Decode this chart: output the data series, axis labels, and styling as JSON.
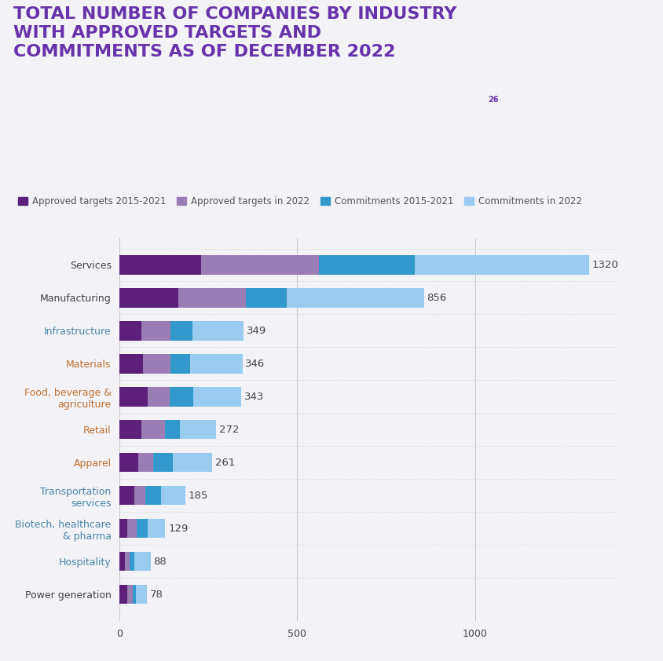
{
  "title_line1": "TOTAL NUMBER OF COMPANIES BY INDUSTRY",
  "title_line2": "WITH APPROVED TARGETS AND",
  "title_line3": "COMMITMENTS AS OF DECEMBER 2022",
  "title_superscript": "26",
  "title_color": "#6633aa",
  "background_color": "#f2f2f7",
  "categories": [
    "Services",
    "Manufacturing",
    "Infrastructure",
    "Materials",
    "Food, beverage &\nagriculture",
    "Retail",
    "Apparel",
    "Transportation\nservices",
    "Biotech, healthcare\n& pharma",
    "Hospitality",
    "Power generation"
  ],
  "totals": [
    1320,
    856,
    349,
    346,
    343,
    272,
    261,
    185,
    129,
    88,
    78
  ],
  "segments": {
    "approved_2015_2021": [
      230,
      165,
      62,
      65,
      80,
      62,
      52,
      42,
      22,
      16,
      22
    ],
    "approved_2022": [
      330,
      190,
      82,
      78,
      62,
      65,
      42,
      30,
      26,
      12,
      16
    ],
    "commit_2015_2021": [
      270,
      115,
      62,
      55,
      65,
      42,
      57,
      45,
      31,
      14,
      8
    ],
    "commit_2022": [
      490,
      386,
      143,
      148,
      136,
      103,
      110,
      68,
      50,
      46,
      32
    ]
  },
  "colors": {
    "approved_2015_2021": "#5c1f7a",
    "approved_2022": "#9b7db5",
    "commit_2015_2021": "#3399cc",
    "commit_2022": "#99ccee"
  },
  "legend_labels": [
    "Approved targets 2015-2021",
    "Approved targets in 2022",
    "Commitments 2015-2021",
    "Commitments in 2022"
  ],
  "legend_color_keys": [
    "approved_2015_2021",
    "approved_2022",
    "commit_2015_2021",
    "commit_2022"
  ],
  "xlim": [
    0,
    1400
  ],
  "xticks": [
    0,
    500,
    1000
  ],
  "label_color_default": "#444444",
  "label_color_teal": "#4a86a8",
  "label_color_orange": "#c07030",
  "bar_height": 0.58,
  "value_label_fontsize": 9.5,
  "category_fontsize": 9,
  "title_fontsize": 16,
  "legend_fontsize": 8.5,
  "teal_categories": [
    "Infrastructure",
    "Transportation\nservices",
    "Biotech, healthcare\n& pharma",
    "Hospitality"
  ],
  "orange_categories": [
    "Materials",
    "Food, beverage &\nagriculture",
    "Retail",
    "Apparel"
  ]
}
